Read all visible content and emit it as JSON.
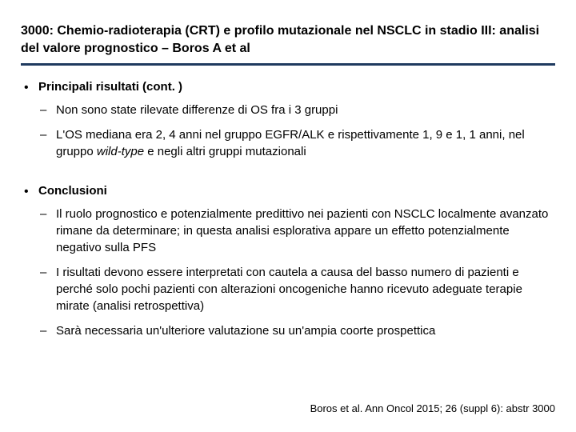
{
  "colors": {
    "text": "#000000",
    "background": "#ffffff",
    "rule": "#1f3a5f"
  },
  "typography": {
    "title_fontsize_pt": 16,
    "body_fontsize_pt": 15,
    "citation_fontsize_pt": 13,
    "title_weight": "bold",
    "section_head_weight": "bold",
    "font_family": "Arial"
  },
  "title": "3000: Chemio-radioterapia (CRT) e profilo mutazionale nel NSCLC in stadio III: analisi del valore prognostico – Boros A et al",
  "sections": [
    {
      "heading": "Principali risultati (cont. )",
      "bullets": [
        {
          "text": "Non sono state rilevate differenze di OS fra i 3 gruppi"
        },
        {
          "prefix": "L'OS mediana era 2, 4 anni nel gruppo EGFR/ALK e rispettivamente 1, 9 e 1, 1 anni, nel gruppo ",
          "italic": "wild-type",
          "suffix": " e negli altri gruppi mutazionali"
        }
      ]
    },
    {
      "heading": "Conclusioni",
      "bullets": [
        {
          "text": "Il ruolo prognostico e potenzialmente predittivo nei pazienti con NSCLC localmente avanzato rimane da determinare; in questa analisi esplorativa appare un effetto potenzialmente negativo sulla PFS"
        },
        {
          "text": "I risultati devono essere interpretati con cautela a causa del basso numero di pazienti e perché solo pochi pazienti con alterazioni oncogeniche hanno ricevuto adeguate terapie mirate (analisi retrospettiva)"
        },
        {
          "text": "Sarà necessaria un'ulteriore valutazione su un'ampia coorte prospettica"
        }
      ]
    }
  ],
  "citation": "Boros et al. Ann Oncol 2015; 26 (suppl 6): abstr 3000"
}
